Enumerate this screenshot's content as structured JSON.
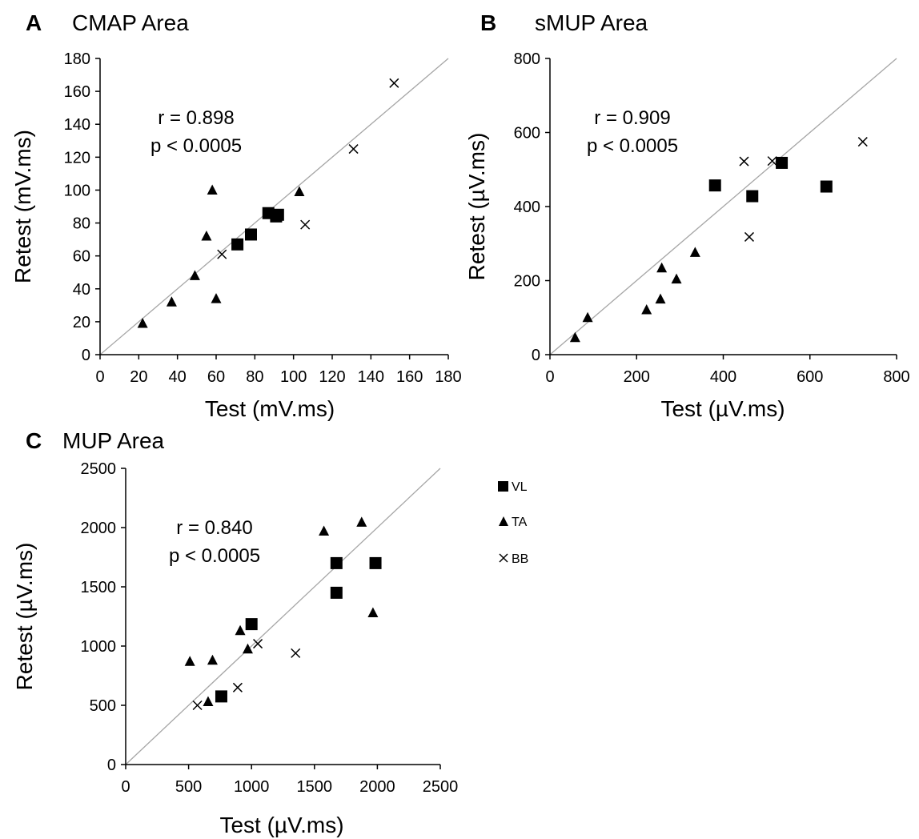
{
  "legend": [
    {
      "label": "VL",
      "marker": "square"
    },
    {
      "label": "TA",
      "marker": "triangle"
    },
    {
      "label": "BB",
      "marker": "cross"
    }
  ],
  "chart_data": [
    {
      "panel": "A",
      "type": "scatter",
      "title": "CMAP Area",
      "xlabel": "Test (mV.ms)",
      "ylabel": "Retest (mV.ms)",
      "xlim": [
        0,
        180
      ],
      "ylim": [
        0,
        180
      ],
      "xticks": [
        0,
        20,
        40,
        60,
        80,
        100,
        120,
        140,
        160,
        180
      ],
      "yticks": [
        0,
        20,
        40,
        60,
        80,
        100,
        120,
        140,
        160,
        180
      ],
      "identity_line": true,
      "stat_r": "r = 0.898",
      "stat_p": "p < 0.0005",
      "series": [
        {
          "name": "VL",
          "marker": "square",
          "points": [
            [
              71,
              67
            ],
            [
              78,
              73
            ],
            [
              87,
              86
            ],
            [
              91,
              84
            ],
            [
              92,
              85
            ]
          ]
        },
        {
          "name": "TA",
          "marker": "triangle",
          "points": [
            [
              22,
              19
            ],
            [
              37,
              32
            ],
            [
              49,
              48
            ],
            [
              55,
              72
            ],
            [
              58,
              100
            ],
            [
              60,
              34
            ],
            [
              103,
              99
            ]
          ]
        },
        {
          "name": "BB",
          "marker": "cross",
          "points": [
            [
              63,
              61
            ],
            [
              106,
              79
            ],
            [
              131,
              125
            ],
            [
              152,
              165
            ]
          ]
        }
      ]
    },
    {
      "panel": "B",
      "type": "scatter",
      "title": "sMUP Area",
      "xlabel": "Test (µV.ms)",
      "ylabel": "Retest (µV.ms)",
      "xlim": [
        0,
        800
      ],
      "ylim": [
        0,
        800
      ],
      "xticks": [
        0,
        200,
        400,
        600,
        800
      ],
      "yticks": [
        0,
        200,
        400,
        600,
        800
      ],
      "identity_line": true,
      "stat_r": "r = 0.909",
      "stat_p": "p < 0.0005",
      "series": [
        {
          "name": "VL",
          "marker": "square",
          "points": [
            [
              381,
              457
            ],
            [
              467,
              428
            ],
            [
              535,
              518
            ],
            [
              638,
              454
            ]
          ]
        },
        {
          "name": "TA",
          "marker": "triangle",
          "points": [
            [
              58,
              46
            ],
            [
              87,
              100
            ],
            [
              223,
              121
            ],
            [
              255,
              150
            ],
            [
              258,
              234
            ],
            [
              292,
              204
            ],
            [
              335,
              276
            ]
          ]
        },
        {
          "name": "BB",
          "marker": "cross",
          "points": [
            [
              448,
              522
            ],
            [
              460,
              318
            ],
            [
              513,
              523
            ],
            [
              722,
              575
            ]
          ]
        }
      ]
    },
    {
      "panel": "C",
      "type": "scatter",
      "title": "MUP Area",
      "xlabel": "Test (µV.ms)",
      "ylabel": "Retest (µV.ms)",
      "xlim": [
        0,
        2500
      ],
      "ylim": [
        0,
        2500
      ],
      "xticks": [
        0,
        500,
        1000,
        1500,
        2000,
        2500
      ],
      "yticks": [
        0,
        500,
        1000,
        1500,
        2000,
        2500
      ],
      "identity_line": true,
      "stat_r": "r = 0.840",
      "stat_p": "p < 0.0005",
      "series": [
        {
          "name": "VL",
          "marker": "square",
          "points": [
            [
              760,
              575
            ],
            [
              1000,
              1185
            ],
            [
              1675,
              1450
            ],
            [
              1675,
              1700
            ],
            [
              1985,
              1700
            ]
          ]
        },
        {
          "name": "TA",
          "marker": "triangle",
          "points": [
            [
              510,
              870
            ],
            [
              655,
              530
            ],
            [
              690,
              880
            ],
            [
              910,
              1130
            ],
            [
              970,
              975
            ],
            [
              1575,
              1970
            ],
            [
              1875,
              2045
            ],
            [
              1965,
              1280
            ]
          ]
        },
        {
          "name": "BB",
          "marker": "cross",
          "points": [
            [
              570,
              500
            ],
            [
              890,
              650
            ],
            [
              1050,
              1020
            ],
            [
              1350,
              940
            ]
          ]
        }
      ]
    }
  ]
}
